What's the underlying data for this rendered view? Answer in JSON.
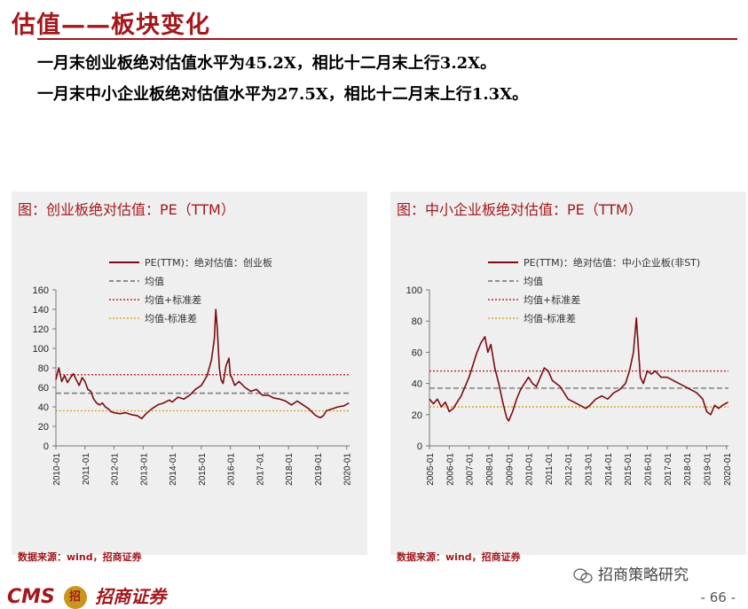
{
  "header": {
    "title": "估值——板块变化",
    "bullets": [
      "一月末创业板绝对估值水平为45.2X，相比十二月末上行3.2X。",
      "一月末中小企业板绝对估值水平为27.5X，相比十二月末上行1.3X。"
    ]
  },
  "panels": [
    {
      "title": "图：创业板绝对估值：PE（TTM）",
      "source": "数据来源：wind，招商证券"
    },
    {
      "title": "图：中小企业板绝对估值：PE（TTM）",
      "source": "数据来源：wind，招商证券"
    }
  ],
  "footer": {
    "logo_text": "CMS",
    "logo_badge": "招",
    "logo_cn": "招商证券",
    "wechat": "招商策略研究",
    "page_number": "- 66 -"
  },
  "colors": {
    "brand_red": "#a3181c",
    "line": "#7a0c12",
    "mean": "#808080",
    "plus_std": "#c0262a",
    "minus_std": "#d7a82c"
  },
  "chart_data": [
    {
      "type": "line",
      "title": "",
      "ylim": [
        0,
        160
      ],
      "yticks": [
        0,
        20,
        40,
        60,
        80,
        100,
        120,
        140,
        160
      ],
      "x_ticks": [
        "2010-01",
        "2011-01",
        "2012-01",
        "2013-01",
        "2014-01",
        "2015-01",
        "2016-01",
        "2017-01",
        "2018-01",
        "2019-01",
        "2020-01"
      ],
      "xlim": [
        2010.0,
        2020.1
      ],
      "legend": [
        "PE(TTM)：绝对估值：创业板",
        "均值",
        "均值+标准差",
        "均值-标准差"
      ],
      "legend_position": "top-right",
      "series": [
        {
          "name": "PE(TTM)：绝对估值：创业板",
          "x": [
            2010.0,
            2010.1,
            2010.2,
            2010.3,
            2010.4,
            2010.5,
            2010.6,
            2010.7,
            2010.8,
            2010.9,
            2011.0,
            2011.1,
            2011.2,
            2011.3,
            2011.4,
            2011.5,
            2011.6,
            2011.7,
            2011.8,
            2011.9,
            2012.0,
            2012.2,
            2012.4,
            2012.6,
            2012.8,
            2012.95,
            2013.1,
            2013.3,
            2013.5,
            2013.7,
            2013.9,
            2014.0,
            2014.2,
            2014.4,
            2014.6,
            2014.8,
            2015.0,
            2015.2,
            2015.35,
            2015.45,
            2015.5,
            2015.55,
            2015.62,
            2015.68,
            2015.75,
            2015.85,
            2015.95,
            2016.0,
            2016.05,
            2016.15,
            2016.3,
            2016.5,
            2016.7,
            2016.9,
            2017.1,
            2017.3,
            2017.5,
            2017.7,
            2017.9,
            2018.1,
            2018.3,
            2018.5,
            2018.7,
            2018.9,
            2019.0,
            2019.1,
            2019.2,
            2019.3,
            2019.5,
            2019.7,
            2019.9,
            2020.08
          ],
          "y": [
            68,
            80,
            66,
            72,
            65,
            70,
            74,
            68,
            62,
            70,
            66,
            58,
            56,
            48,
            44,
            42,
            44,
            40,
            38,
            35,
            34,
            33,
            34,
            32,
            31,
            28,
            33,
            38,
            42,
            44,
            47,
            45,
            50,
            48,
            52,
            58,
            62,
            72,
            88,
            110,
            140,
            120,
            80,
            68,
            64,
            82,
            90,
            72,
            70,
            62,
            66,
            60,
            56,
            58,
            52,
            52,
            49,
            48,
            46,
            42,
            46,
            42,
            38,
            32,
            30,
            29,
            31,
            36,
            38,
            40,
            41,
            44
          ]
        },
        {
          "name": "均值",
          "y_const": 54
        },
        {
          "name": "均值+标准差",
          "y_const": 73
        },
        {
          "name": "均值-标准差",
          "y_const": 36
        }
      ]
    },
    {
      "type": "line",
      "title": "",
      "ylim": [
        0,
        100
      ],
      "yticks": [
        0,
        20,
        40,
        60,
        80,
        100
      ],
      "x_ticks": [
        "2005-01",
        "2006-01",
        "2007-01",
        "2008-01",
        "2009-01",
        "2010-01",
        "2011-01",
        "2012-01",
        "2013-01",
        "2014-01",
        "2015-01",
        "2016-01",
        "2017-01",
        "2018-01",
        "2019-01",
        "2020-01"
      ],
      "xlim": [
        2005.0,
        2020.1
      ],
      "legend": [
        "PE(TTM)：绝对估值：中小企业板(非ST)",
        "均值",
        "均值+标准差",
        "均值-标准差"
      ],
      "legend_position": "top-right",
      "series": [
        {
          "name": "PE(TTM)：绝对估值：中小企业板(非ST)",
          "x": [
            2005.0,
            2005.2,
            2005.4,
            2005.6,
            2005.8,
            2006.0,
            2006.2,
            2006.4,
            2006.6,
            2006.8,
            2007.0,
            2007.2,
            2007.4,
            2007.6,
            2007.8,
            2007.95,
            2008.1,
            2008.3,
            2008.5,
            2008.7,
            2008.9,
            2009.0,
            2009.2,
            2009.4,
            2009.6,
            2009.8,
            2010.0,
            2010.2,
            2010.4,
            2010.6,
            2010.8,
            2011.0,
            2011.2,
            2011.4,
            2011.6,
            2011.8,
            2012.0,
            2012.3,
            2012.6,
            2012.9,
            2013.1,
            2013.4,
            2013.7,
            2014.0,
            2014.3,
            2014.6,
            2014.9,
            2015.1,
            2015.3,
            2015.45,
            2015.55,
            2015.65,
            2015.8,
            2016.0,
            2016.2,
            2016.4,
            2016.7,
            2017.0,
            2017.3,
            2017.6,
            2017.9,
            2018.2,
            2018.5,
            2018.8,
            2019.0,
            2019.2,
            2019.4,
            2019.6,
            2019.8,
            2020.08
          ],
          "y": [
            30,
            27,
            30,
            25,
            28,
            22,
            24,
            28,
            32,
            38,
            44,
            52,
            60,
            66,
            70,
            60,
            65,
            50,
            40,
            28,
            18,
            16,
            22,
            30,
            36,
            40,
            44,
            40,
            38,
            44,
            50,
            48,
            42,
            40,
            38,
            34,
            30,
            28,
            26,
            24,
            26,
            30,
            32,
            30,
            34,
            36,
            40,
            48,
            60,
            82,
            62,
            44,
            40,
            48,
            46,
            48,
            44,
            44,
            42,
            40,
            38,
            36,
            34,
            30,
            22,
            20,
            26,
            24,
            26,
            28
          ]
        },
        {
          "name": "均值",
          "y_const": 37
        },
        {
          "name": "均值+标准差",
          "y_const": 48
        },
        {
          "name": "均值-标准差",
          "y_const": 25
        }
      ]
    }
  ]
}
